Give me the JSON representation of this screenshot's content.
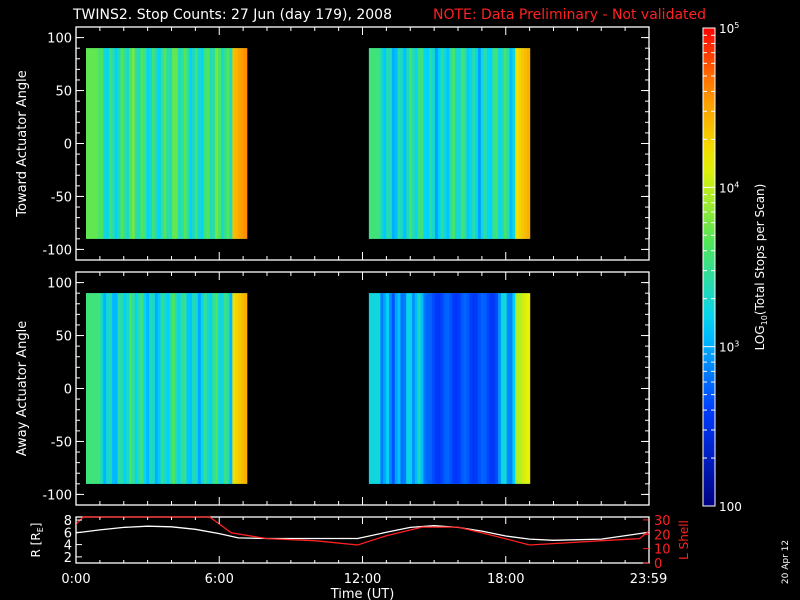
{
  "header": {
    "title": "TWINS2. Stop Counts: 27 Jun (day 179), 2008",
    "note": "NOTE: Data Preliminary - Not validated",
    "note_color": "#ff2020"
  },
  "side_date": "20 Apr 12",
  "chart_data": [
    {
      "type": "heatmap",
      "ylabel": "Toward Actuator Angle",
      "ylim": [
        -110,
        110
      ],
      "yticks": [
        100,
        50,
        0,
        -50,
        -100
      ],
      "xlim": [
        0,
        24
      ],
      "data_angle_range": [
        -90,
        90
      ],
      "intervals": [
        {
          "start": 0.0,
          "end": 7.15,
          "level": 3.45
        },
        {
          "start": 11.85,
          "end": 19.0,
          "level": 3.3
        },
        {
          "start": 23.6,
          "end": 24.0,
          "level": 4.5
        }
      ]
    },
    {
      "type": "heatmap",
      "ylabel": "Away Actuator Angle",
      "ylim": [
        -110,
        110
      ],
      "yticks": [
        100,
        50,
        0,
        -50,
        -100
      ],
      "xlim": [
        0,
        24
      ],
      "data_angle_range": [
        -90,
        90
      ],
      "intervals": [
        {
          "start": 0.0,
          "end": 7.15,
          "level": 3.3
        },
        {
          "start": 11.85,
          "end": 19.0,
          "level": 3.0
        },
        {
          "start": 23.6,
          "end": 24.0,
          "level": 4.5
        }
      ]
    },
    {
      "type": "line",
      "ylabel_left": "R [RE]",
      "ylabel_left_main": "R [R",
      "ylabel_left_sub": "E",
      "ylabel_left_end": "]",
      "ylabel_right": "L Shell",
      "ylim_left": [
        1,
        8.5
      ],
      "yticks_left": [
        8,
        6,
        4,
        2
      ],
      "ylim_right": [
        0,
        32
      ],
      "yticks_right": [
        30,
        20,
        10,
        0
      ],
      "xlabel": "Time (UT)",
      "xticks": [
        "0:00",
        "6:00",
        "12:00",
        "18:00",
        "23:59"
      ],
      "xtick_values": [
        0,
        6,
        12,
        18,
        23.98
      ],
      "series": [
        {
          "axis": "left",
          "color": "#ffffff",
          "x": [
            0,
            1.0,
            2.0,
            3.0,
            4.0,
            5.0,
            6.0,
            6.8,
            8.0,
            10.0,
            11.8,
            13.0,
            14.0,
            15.0,
            16.0,
            17.0,
            18.0,
            19.0,
            20.0,
            22.0,
            23.98
          ],
          "y": [
            5.9,
            6.4,
            6.8,
            7.0,
            6.9,
            6.5,
            5.8,
            5.1,
            5.0,
            5.0,
            5.0,
            6.0,
            6.8,
            7.1,
            6.8,
            6.2,
            5.4,
            4.9,
            4.7,
            4.9,
            6.0
          ]
        },
        {
          "axis": "right",
          "color": "#ff2020",
          "x": [
            0,
            0.3,
            5.6,
            6.5,
            8.0,
            10.0,
            11.8,
            13.0,
            14.5,
            16.0,
            17.5,
            19.0,
            20.5,
            22.0,
            23.6,
            23.98
          ],
          "y": [
            27,
            32,
            32,
            21,
            17,
            15.5,
            12.5,
            19,
            25,
            25,
            19,
            12.5,
            14,
            15.5,
            17,
            22
          ]
        }
      ]
    }
  ],
  "colorbar": {
    "label_main": "LOG",
    "label_sub": "10",
    "label_rest": "(Total Stops per Scan)",
    "ticks": [
      {
        "value": 100,
        "main": "100",
        "sup": ""
      },
      {
        "value": 1000,
        "main": "10",
        "sup": "3"
      },
      {
        "value": 10000,
        "main": "10",
        "sup": "4"
      },
      {
        "value": 100000,
        "main": "10",
        "sup": "5"
      }
    ],
    "log_range": [
      2,
      5
    ]
  }
}
